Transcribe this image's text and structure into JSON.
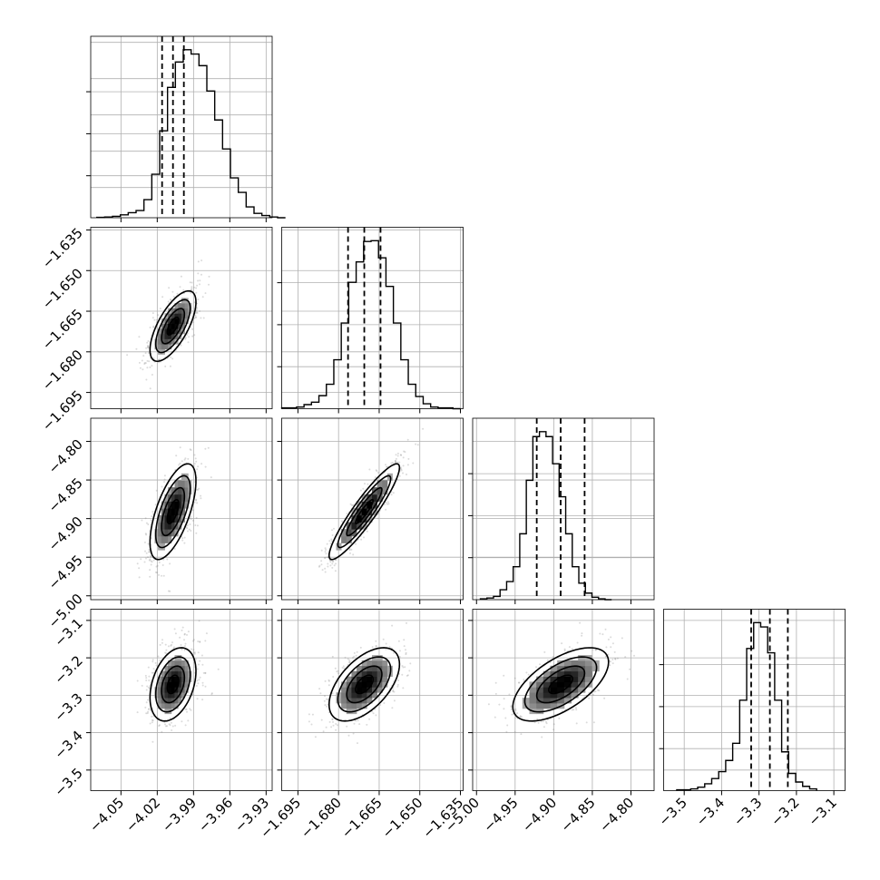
{
  "chart_data": {
    "type": "corner",
    "title": "",
    "parameters": [
      {
        "name": "",
        "range": [
          -4.075,
          -3.925
        ],
        "ticks": [
          -4.05,
          -4.02,
          -3.99,
          -3.96,
          -3.93
        ],
        "tick_labels": [
          "−4.05",
          "−4.02",
          "−3.99",
          "−3.96",
          "−3.93"
        ]
      },
      {
        "name": "",
        "range": [
          -1.701,
          -1.634
        ],
        "ticks": [
          -1.695,
          -1.68,
          -1.665,
          -1.65,
          -1.635
        ],
        "tick_labels": [
          "−1.695",
          "−1.680",
          "−1.665",
          "−1.650",
          "−1.635"
        ]
      },
      {
        "name": "",
        "range": [
          -5.005,
          -4.77
        ],
        "ticks": [
          -5.0,
          -4.95,
          -4.9,
          -4.85,
          -4.8
        ],
        "tick_labels": [
          "−5.00",
          "−4.95",
          "−4.90",
          "−4.85",
          "−4.80"
        ]
      },
      {
        "name": "",
        "range": [
          -3.555,
          -3.07
        ],
        "ticks": [
          -3.5,
          -3.4,
          -3.3,
          -3.2,
          -3.1
        ],
        "tick_labels": [
          "−3.5",
          "−3.4",
          "−3.3",
          "−3.2",
          "−3.1"
        ]
      }
    ],
    "histograms": [
      {
        "bin_start": -4.07,
        "bin_width": 0.0065,
        "counts": [
          0.5,
          1,
          2,
          4,
          7,
          10,
          25,
          60,
          120,
          180,
          215,
          232,
          226,
          210,
          175,
          135,
          95,
          55,
          35,
          15,
          6,
          3,
          1,
          0
        ]
      },
      {
        "bin_start": -1.701,
        "bin_width": 0.00275,
        "counts": [
          1,
          1,
          2,
          5,
          8,
          16,
          30,
          60,
          105,
          155,
          180,
          205,
          206,
          185,
          150,
          105,
          60,
          30,
          15,
          6,
          2,
          1,
          1,
          0
        ]
      },
      {
        "bin_start": -4.995,
        "bin_width": 0.0085,
        "counts": [
          1,
          2,
          4,
          12,
          22,
          40,
          80,
          145,
          198,
          204,
          198,
          165,
          125,
          80,
          40,
          20,
          8,
          3,
          1,
          0
        ]
      },
      {
        "bin_start": -3.52,
        "bin_width": 0.0187,
        "counts": [
          1,
          1,
          2,
          4,
          8,
          14,
          22,
          35,
          55,
          105,
          165,
          195,
          190,
          160,
          105,
          45,
          20,
          10,
          5,
          2
        ]
      }
    ],
    "quantiles": [
      [
        -4.016,
        -4.007,
        -3.998
      ],
      [
        -1.6765,
        -1.6705,
        -1.6645
      ],
      [
        -4.922,
        -4.891,
        -4.86
      ],
      [
        -3.321,
        -3.271,
        -3.223
      ]
    ],
    "means": [
      -4.007,
      -1.6705,
      -4.891,
      -3.271
    ],
    "sigmas": [
      0.0095,
      0.0065,
      0.031,
      0.049
    ],
    "correlations": {
      "0-1": 0.68,
      "0-2": 0.64,
      "0-3": 0.36,
      "1-2": 0.92,
      "1-3": 0.55,
      "2-3": 0.61
    },
    "contour_levels_sigma": [
      0.5,
      1.0,
      1.5,
      2.0
    ],
    "samples_per_panel": 900,
    "grid": true,
    "show_y_ticks_on_histograms": false,
    "colors": {
      "line": "#000000",
      "grid": "#b0b0b0",
      "scatter": "#7f7f7f"
    }
  }
}
